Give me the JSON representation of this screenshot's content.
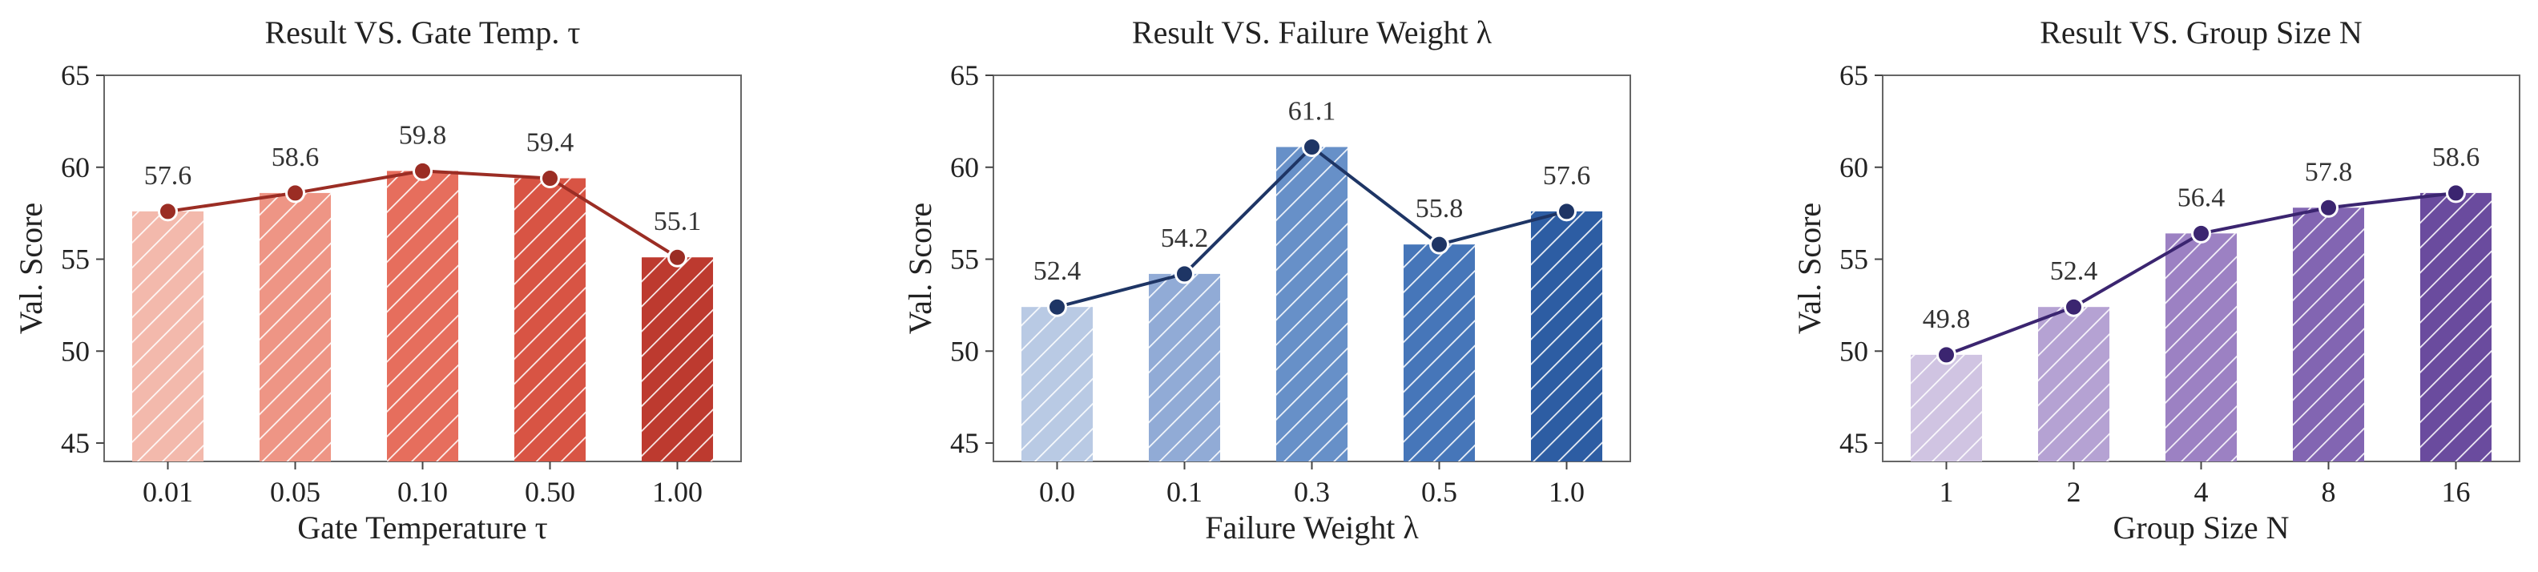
{
  "chart_data": [
    {
      "type": "bar",
      "title": "Result VS. Gate Temp. τ",
      "xlabel": "Gate Temperature τ",
      "ylabel": "Val. Score",
      "categories": [
        "0.01",
        "0.05",
        "0.10",
        "0.50",
        "1.00"
      ],
      "values": [
        57.6,
        58.6,
        59.8,
        59.4,
        55.1
      ],
      "data_labels": [
        "57.6",
        "58.6",
        "59.8",
        "59.4",
        "55.1"
      ],
      "ylim": [
        44,
        65
      ],
      "yticks": [
        "45",
        "50",
        "55",
        "60",
        "65"
      ],
      "line_overlay": true,
      "bar_colors": [
        "#f3b9ac",
        "#ee9585",
        "#e66e5d",
        "#d85444",
        "#bd3a2f"
      ],
      "line_color": "#9b2d24",
      "bar_pattern": "diagonal-hatch",
      "grid": false
    },
    {
      "type": "bar",
      "title": "Result VS. Failure Weight λ",
      "xlabel": "Failure Weight λ",
      "ylabel": "Val. Score",
      "categories": [
        "0.0",
        "0.1",
        "0.3",
        "0.5",
        "1.0"
      ],
      "values": [
        52.4,
        54.2,
        61.1,
        55.8,
        57.6
      ],
      "data_labels": [
        "52.4",
        "54.2",
        "61.1",
        "55.8",
        "57.6"
      ],
      "ylim": [
        44,
        65
      ],
      "yticks": [
        "45",
        "50",
        "55",
        "60",
        "65"
      ],
      "line_overlay": true,
      "bar_colors": [
        "#b9cae4",
        "#91abd6",
        "#6790c8",
        "#4676b9",
        "#2d5da3"
      ],
      "line_color": "#1e3565",
      "bar_pattern": "diagonal-hatch",
      "grid": false
    },
    {
      "type": "bar",
      "title": "Result VS. Group Size N",
      "xlabel": "Group Size N",
      "ylabel": "Val. Score",
      "categories": [
        "1",
        "2",
        "4",
        "8",
        "16"
      ],
      "values": [
        49.8,
        52.4,
        56.4,
        57.8,
        58.6
      ],
      "data_labels": [
        "49.8",
        "52.4",
        "56.4",
        "57.8",
        "58.6"
      ],
      "ylim": [
        44,
        65
      ],
      "yticks": [
        "45",
        "50",
        "55",
        "60",
        "65"
      ],
      "line_overlay": true,
      "bar_colors": [
        "#d0c4e2",
        "#b5a2d3",
        "#9c81c3",
        "#8265b2",
        "#6a4b9e"
      ],
      "line_color": "#3b2570",
      "bar_pattern": "diagonal-hatch",
      "grid": false
    }
  ]
}
